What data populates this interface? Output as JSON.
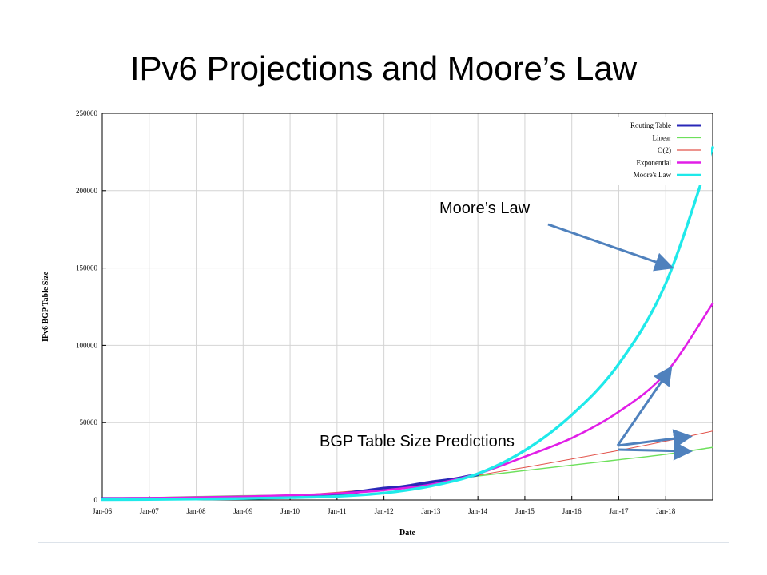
{
  "slide": {
    "title": "IPv6 Projections and Moore’s Law",
    "callout_moores": "Moore’s Law",
    "callout_bgp": "BGP Table Size Predictions",
    "arrow_color": "#4f81bd"
  },
  "chart_data": {
    "type": "line",
    "xlabel": "Date",
    "ylabel": "IPv6 BGP Table Size",
    "x_tick_labels": [
      "Jan-06",
      "Jan-07",
      "Jan-08",
      "Jan-09",
      "Jan-10",
      "Jan-11",
      "Jan-12",
      "Jan-13",
      "Jan-14",
      "Jan-15",
      "Jan-16",
      "Jan-17",
      "Jan-18"
    ],
    "y_ticks": [
      0,
      50000,
      100000,
      150000,
      200000,
      250000
    ],
    "xlim": [
      "2006-01",
      "2019-01"
    ],
    "ylim": [
      0,
      250000
    ],
    "grid": true,
    "legend_position": "top-right",
    "series": [
      {
        "name": "Routing Table",
        "color": "#2a28b8",
        "points": [
          [
            "2006-01",
            850
          ],
          [
            "2007-01",
            900
          ],
          [
            "2008-01",
            1100
          ],
          [
            "2009-01",
            1500
          ],
          [
            "2010-01",
            2200
          ],
          [
            "2010-07",
            2900
          ],
          [
            "2011-01",
            3600
          ],
          [
            "2011-07",
            5500
          ],
          [
            "2012-01",
            7500
          ],
          [
            "2012-04",
            8000
          ],
          [
            "2012-07",
            9000
          ],
          [
            "2013-01",
            11500
          ],
          [
            "2013-07",
            13500
          ],
          [
            "2014-01",
            16500
          ]
        ]
      },
      {
        "name": "Linear",
        "color": "#6de05b",
        "points": [
          [
            "2006-01",
            400
          ],
          [
            "2007-01",
            1500
          ],
          [
            "2008-01",
            2200
          ],
          [
            "2009-01",
            2800
          ],
          [
            "2010-01",
            3200
          ],
          [
            "2011-01",
            4200
          ],
          [
            "2012-01",
            7000
          ],
          [
            "2013-01",
            11500
          ],
          [
            "2014-01",
            15500
          ],
          [
            "2015-01",
            19000
          ],
          [
            "2016-01",
            22500
          ],
          [
            "2017-01",
            26000
          ],
          [
            "2018-01",
            29500
          ],
          [
            "2019-01",
            34000
          ]
        ]
      },
      {
        "name": "O(2)",
        "color": "#e2534b",
        "points": [
          [
            "2006-01",
            700
          ],
          [
            "2008-01",
            1500
          ],
          [
            "2010-01",
            3000
          ],
          [
            "2012-01",
            7500
          ],
          [
            "2013-01",
            11000
          ],
          [
            "2014-01",
            16000
          ],
          [
            "2015-01",
            21000
          ],
          [
            "2016-01",
            26500
          ],
          [
            "2017-01",
            32000
          ],
          [
            "2018-01",
            38000
          ],
          [
            "2019-01",
            44500
          ]
        ]
      },
      {
        "name": "Exponential",
        "color": "#e11ee7",
        "points": [
          [
            "2006-01",
            1000
          ],
          [
            "2007-01",
            1300
          ],
          [
            "2008-01",
            1700
          ],
          [
            "2009-01",
            2200
          ],
          [
            "2010-01",
            3000
          ],
          [
            "2011-01",
            4200
          ],
          [
            "2012-01",
            6300
          ],
          [
            "2013-01",
            10000
          ],
          [
            "2014-01",
            17000
          ],
          [
            "2015-01",
            28000
          ],
          [
            "2016-01",
            40000
          ],
          [
            "2017-01",
            57000
          ],
          [
            "2018-01",
            82000
          ],
          [
            "2019-01",
            127000
          ]
        ]
      },
      {
        "name": "Moore's Law",
        "color": "#1fe9ea",
        "points": [
          [
            "2006-01",
            200
          ],
          [
            "2007-01",
            350
          ],
          [
            "2008-01",
            600
          ],
          [
            "2009-01",
            950
          ],
          [
            "2010-01",
            1500
          ],
          [
            "2011-01",
            2400
          ],
          [
            "2012-01",
            4500
          ],
          [
            "2013-01",
            9000
          ],
          [
            "2014-01",
            17000
          ],
          [
            "2015-01",
            32000
          ],
          [
            "2016-01",
            55000
          ],
          [
            "2017-01",
            88000
          ],
          [
            "2018-01",
            140000
          ],
          [
            "2019-01",
            228000
          ]
        ]
      }
    ]
  }
}
